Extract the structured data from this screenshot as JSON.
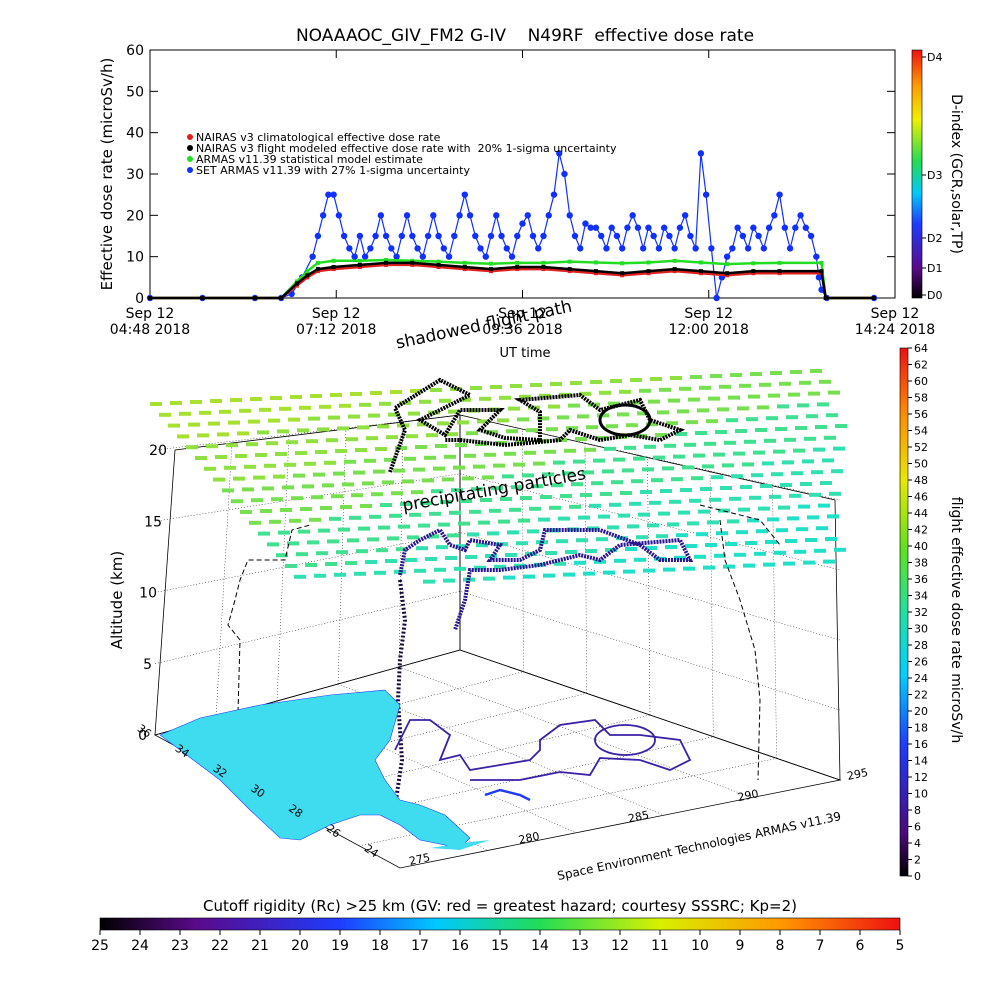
{
  "chart_data": [
    {
      "type": "line",
      "title": "NOAAAOC_GIV_FM2 G-IV    N49RF  effective dose rate",
      "ylabel": "Effective dose rate  (microSv/h)",
      "xlabel": "UT time",
      "ylim": [
        0,
        60
      ],
      "yticks": [
        "0",
        "10",
        "20",
        "30",
        "40",
        "50",
        "60"
      ],
      "xticks": [
        {
          "top": "Sep 12",
          "bottom": "04:48 2018"
        },
        {
          "top": "Sep 12",
          "bottom": "07:12 2018"
        },
        {
          "top": "Sep 12",
          "bottom": "09:36 2018"
        },
        {
          "top": "Sep 12",
          "bottom": "12:00 2018"
        },
        {
          "top": "Sep 12",
          "bottom": "14:24 2018"
        }
      ],
      "legend": [
        {
          "label": "NAIRAS v3 climatological effective dose rate",
          "color": "#e02020"
        },
        {
          "label": "NAIRAS v3 flight modeled effective dose rate with  20% 1-sigma uncertainty",
          "color": "#000000"
        },
        {
          "label": "ARMAS v11.39 statistical model estimate",
          "color": "#22dd22"
        },
        {
          "label": "SET ARMAS v11.39 with 27% 1-sigma uncertainty",
          "color": "#1030ff"
        }
      ],
      "legend_position": "upper-left",
      "annotations": [
        "shadowed flight path"
      ],
      "dindex_axis": {
        "label": "D-index (GCR,solar,TP)",
        "ticks": [
          "D0",
          "D1",
          "D2",
          "D3",
          "D4"
        ]
      },
      "series": [
        {
          "name": "NAIRAS v3 climatological effective dose rate",
          "points": [
            [
              0,
              0
            ],
            [
              10,
              0
            ],
            [
              20,
              0
            ],
            [
              25,
              0
            ],
            [
              28,
              3
            ],
            [
              30,
              5
            ],
            [
              32,
              6.5
            ],
            [
              35,
              7
            ],
            [
              40,
              7.5
            ],
            [
              45,
              8
            ],
            [
              50,
              8
            ],
            [
              55,
              7.5
            ],
            [
              60,
              7
            ],
            [
              65,
              6.5
            ],
            [
              70,
              7
            ],
            [
              75,
              7
            ],
            [
              80,
              6.5
            ],
            [
              85,
              6
            ],
            [
              90,
              5.5
            ],
            [
              95,
              6
            ],
            [
              100,
              6.5
            ],
            [
              105,
              6
            ],
            [
              110,
              5.5
            ],
            [
              115,
              6
            ],
            [
              120,
              6
            ],
            [
              128,
              6
            ],
            [
              128.8,
              0
            ],
            [
              138,
              0
            ]
          ]
        },
        {
          "name": "NAIRAS v3 flight modeled effective dose rate with  20% 1-sigma uncertainty",
          "points": [
            [
              0,
              0
            ],
            [
              10,
              0
            ],
            [
              20,
              0
            ],
            [
              25,
              0
            ],
            [
              28,
              3.5
            ],
            [
              30,
              5.5
            ],
            [
              32,
              7
            ],
            [
              35,
              7.5
            ],
            [
              40,
              8
            ],
            [
              45,
              8.5
            ],
            [
              50,
              8.5
            ],
            [
              55,
              8
            ],
            [
              60,
              7.5
            ],
            [
              65,
              7
            ],
            [
              70,
              7.5
            ],
            [
              75,
              7.5
            ],
            [
              80,
              7
            ],
            [
              85,
              6.5
            ],
            [
              90,
              6
            ],
            [
              95,
              6.5
            ],
            [
              100,
              7
            ],
            [
              105,
              6.5
            ],
            [
              110,
              6
            ],
            [
              115,
              6.5
            ],
            [
              120,
              6.5
            ],
            [
              128,
              6.5
            ],
            [
              128.8,
              0
            ],
            [
              138,
              0
            ]
          ]
        },
        {
          "name": "ARMAS v11.39 statistical model estimate",
          "points": [
            [
              0,
              0
            ],
            [
              10,
              0
            ],
            [
              20,
              0
            ],
            [
              25,
              0
            ],
            [
              28,
              4
            ],
            [
              30,
              6.5
            ],
            [
              32,
              8.5
            ],
            [
              35,
              9
            ],
            [
              40,
              9
            ],
            [
              45,
              9.2
            ],
            [
              50,
              9
            ],
            [
              55,
              8.8
            ],
            [
              60,
              8.5
            ],
            [
              65,
              8.3
            ],
            [
              70,
              8.5
            ],
            [
              75,
              8.5
            ],
            [
              80,
              8.8
            ],
            [
              85,
              8.6
            ],
            [
              90,
              8.4
            ],
            [
              95,
              8.6
            ],
            [
              100,
              9
            ],
            [
              105,
              8.6
            ],
            [
              110,
              8.2
            ],
            [
              115,
              8.4
            ],
            [
              120,
              8.5
            ],
            [
              128,
              8.5
            ],
            [
              128.8,
              0
            ],
            [
              138,
              0
            ]
          ]
        },
        {
          "name": "SET ARMAS v11.39 with 27% 1-sigma uncertainty",
          "points": [
            [
              0,
              0
            ],
            [
              10,
              0
            ],
            [
              20,
              0
            ],
            [
              25,
              0
            ],
            [
              27,
              1
            ],
            [
              29,
              5
            ],
            [
              31,
              10
            ],
            [
              32,
              15
            ],
            [
              33,
              20
            ],
            [
              34,
              25
            ],
            [
              35,
              25
            ],
            [
              36,
              20
            ],
            [
              37,
              15
            ],
            [
              38,
              12
            ],
            [
              39,
              10
            ],
            [
              40,
              15
            ],
            [
              41,
              10
            ],
            [
              42,
              12
            ],
            [
              43,
              15
            ],
            [
              44,
              20
            ],
            [
              45,
              15
            ],
            [
              46,
              12
            ],
            [
              47,
              10
            ],
            [
              48,
              15
            ],
            [
              49,
              20
            ],
            [
              50,
              15
            ],
            [
              51,
              12
            ],
            [
              52,
              10
            ],
            [
              53,
              15
            ],
            [
              54,
              20
            ],
            [
              55,
              15
            ],
            [
              56,
              12
            ],
            [
              57,
              10
            ],
            [
              58,
              15
            ],
            [
              59,
              20
            ],
            [
              60,
              25
            ],
            [
              61,
              20
            ],
            [
              62,
              15
            ],
            [
              63,
              12
            ],
            [
              64,
              10
            ],
            [
              65,
              15
            ],
            [
              66,
              20
            ],
            [
              67,
              15
            ],
            [
              68,
              12
            ],
            [
              69,
              10
            ],
            [
              70,
              15
            ],
            [
              71,
              18
            ],
            [
              72,
              20
            ],
            [
              73,
              15
            ],
            [
              74,
              12
            ],
            [
              75,
              15
            ],
            [
              76,
              20
            ],
            [
              77,
              25
            ],
            [
              78,
              35
            ],
            [
              79,
              30
            ],
            [
              80,
              20
            ],
            [
              81,
              15
            ],
            [
              82,
              12
            ],
            [
              83,
              18
            ],
            [
              84,
              17
            ],
            [
              85,
              17
            ],
            [
              86,
              15
            ],
            [
              87,
              12
            ],
            [
              88,
              17
            ],
            [
              89,
              15
            ],
            [
              90,
              12
            ],
            [
              91,
              17
            ],
            [
              92,
              20
            ],
            [
              93,
              17
            ],
            [
              94,
              12
            ],
            [
              95,
              17
            ],
            [
              96,
              15
            ],
            [
              97,
              12
            ],
            [
              98,
              17
            ],
            [
              99,
              15
            ],
            [
              100,
              12
            ],
            [
              101,
              17
            ],
            [
              102,
              20
            ],
            [
              103,
              15
            ],
            [
              104,
              12
            ],
            [
              105,
              35
            ],
            [
              106,
              25
            ],
            [
              107,
              12
            ],
            [
              108,
              0
            ],
            [
              109,
              5
            ],
            [
              110,
              10
            ],
            [
              111,
              12
            ],
            [
              112,
              17
            ],
            [
              113,
              15
            ],
            [
              114,
              12
            ],
            [
              115,
              17
            ],
            [
              116,
              15
            ],
            [
              117,
              12
            ],
            [
              118,
              17
            ],
            [
              119,
              20
            ],
            [
              120,
              25
            ],
            [
              121,
              17
            ],
            [
              122,
              12
            ],
            [
              123,
              17
            ],
            [
              124,
              20
            ],
            [
              125,
              17
            ],
            [
              126,
              15
            ],
            [
              127,
              10
            ],
            [
              127.5,
              5
            ],
            [
              128,
              2
            ],
            [
              129,
              0
            ],
            [
              138,
              0
            ]
          ]
        }
      ]
    },
    {
      "type": "scatter",
      "zlabel": "Altitude (km)",
      "zticks": [
        "0",
        "5",
        "10",
        "15",
        "20"
      ],
      "latitude_ticks": [
        "24",
        "26",
        "28",
        "30",
        "32",
        "34",
        "36"
      ],
      "longitude_ticks": [
        "275",
        "280",
        "285",
        "290",
        "295"
      ],
      "annotations": [
        "precipitating particles"
      ],
      "credit": "Space Environment Technologies ARMAS v11.39",
      "colorbar_right": {
        "label": "flight effective dose rate microSv/h",
        "ticks": [
          "0",
          "2",
          "4",
          "6",
          "8",
          "10",
          "12",
          "14",
          "16",
          "18",
          "20",
          "22",
          "24",
          "26",
          "28",
          "30",
          "32",
          "34",
          "36",
          "38",
          "40",
          "42",
          "44",
          "46",
          "48",
          "50",
          "52",
          "54",
          "56",
          "58",
          "60",
          "62",
          "64"
        ]
      },
      "colorbar_bottom": {
        "label": "Cutoff rigidity (Rc) >25 km (GV: red = greatest hazard; courtesy SSSRC; Kp=2)",
        "ticks": [
          "25",
          "24",
          "23",
          "22",
          "21",
          "20",
          "19",
          "18",
          "17",
          "16",
          "15",
          "14",
          "13",
          "12",
          "11",
          "10",
          "9",
          "8",
          "7",
          "6",
          "5"
        ]
      }
    }
  ]
}
